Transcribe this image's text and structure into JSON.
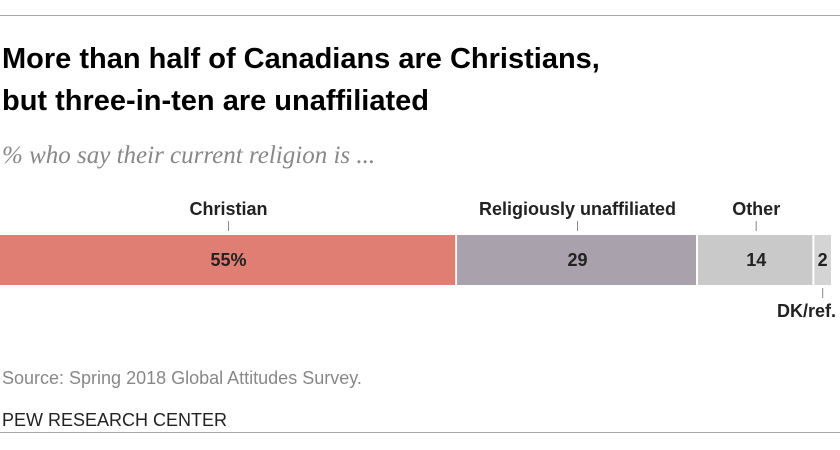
{
  "chart_data": {
    "type": "stacked_bar",
    "title": [
      "More than half of Canadians are Christians,",
      "but three-in-ten are unaffiliated"
    ],
    "subtitle": "% who say their current religion is ...",
    "categories": [
      "Christian",
      "Religiously unaffiliated",
      "Other",
      "DK/ref."
    ],
    "values": [
      55,
      29,
      14,
      2
    ],
    "value_labels": [
      "55%",
      "29",
      "14",
      "2"
    ],
    "colors": [
      "#e07e74",
      "#a9a1ac",
      "#c9c9c9",
      "#d4d4d4"
    ],
    "xlim": [
      0,
      100
    ],
    "source": "Source: Spring 2018 Global Attitudes Survey.",
    "credit": "PEW RESEARCH CENTER"
  }
}
